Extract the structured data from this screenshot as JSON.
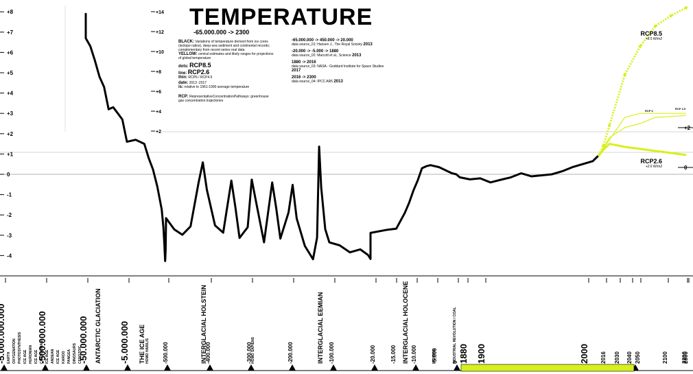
{
  "title": "TEMPERATURE",
  "subtitle": "-65.000.000 -> 2300",
  "legend": {
    "black_key": "BLACK:",
    "black_text": "Variations of temperature derived from ice cores (isotope ratios), deep-sea sediment and continental records; complementary from recent series real data",
    "yellow_key": "YELLOW:",
    "yellow_text": "central estimates and likely ranges for projections of global temperature",
    "dots_key": "dots:",
    "dots_val": "RCP8.5",
    "line_key": "line:",
    "line_val": "RCP2.6",
    "thin_key": "thin:",
    "thin_val": "RCP6 / RCP4.5",
    "date_key": "date:",
    "date_val": "2013 -2017",
    "is_key": "is:",
    "is_val": "relative to 1961-1990 average temperature",
    "rcp_key": "RCP:",
    "rcp_text": "RepresentativeConcentrationPathways: greenhouse gas concentration trajectories"
  },
  "sources": [
    {
      "period": "-65.000.000 -> 450.000 -> 20.000",
      "source": "data source_01: Hansen J., The Royal Society",
      "year": "2013"
    },
    {
      "period": "-20.000 -> -5.000 -> 1880",
      "source": "data source_02: Marcott et al., Science",
      "year": "2013"
    },
    {
      "period": "1880 -> 2016",
      "source": "data source_03: NASA - Goddard Institute for Space Studies",
      "year": "2017"
    },
    {
      "period": "2016 -> 2300",
      "source": "data source_04: IPCC AR5",
      "year": "2013"
    }
  ],
  "scenarios": [
    {
      "name": "RCP8.5",
      "forcing": "+8.5 W/m2"
    },
    {
      "name": "RCP2.6",
      "forcing": "+2.6 W/m2"
    },
    {
      "name": "RCP 6",
      "forcing": ""
    },
    {
      "name": "RCP 4.5",
      "forcing": ""
    }
  ],
  "chart_data": {
    "type": "line",
    "title": "TEMPERATURE",
    "subtitle": "-65.000.000 -> 2300",
    "ylabel": "",
    "left_axis": {
      "range": [
        -4.5,
        8
      ],
      "ticks": [
        "+8",
        "+7",
        "+6",
        "+5",
        "+4",
        "+3",
        "+2",
        "+1",
        "0",
        "-1",
        "-2",
        "-3",
        "-4"
      ]
    },
    "inset_axis": {
      "ticks": [
        "+14",
        "+12",
        "+10",
        "+8",
        "+6",
        "+4",
        "+2"
      ]
    },
    "right_axis": {
      "ticks": [
        "+2",
        "0"
      ]
    },
    "x_ticks_main": [
      "-5.000.000.000",
      "-500.000.000",
      "-50.000.000",
      "-5.000.000",
      "-500.000",
      "-400.000",
      "-300.000",
      "-200.000",
      "-100.000",
      "-20.000",
      "-15.000",
      "-10.000",
      "-5.000",
      "0",
      "1880",
      "1900",
      "2000",
      "2016",
      "2030",
      "2040",
      "2050",
      "2100",
      "2200",
      "2300"
    ],
    "periods": [
      "EARTH",
      "OXYGENATION",
      "PHOTOSYNTHESIS",
      "ICE AGE",
      "HURONIAN",
      "ICE AGE",
      "CRYOGENIAN",
      "ICE AGE",
      "ANDEAN",
      "ICE AGE",
      "KAROO",
      "PANGEA",
      "DINOSAURS",
      "CENOZOIC",
      "ANTARCTIC GLACIATION",
      "THE ICE AGE",
      "HOMO HABILIS",
      "INTERGLACIAL HOLSTEIN",
      "HOMO SAPIENS",
      "INTERGLACIAL EEMIAN",
      "INTERGLACIAL HOLOCENE",
      "WRITING",
      "INDUSTRIAL REVOLUTION / COAL"
    ],
    "series": [
      {
        "name": "BLACK",
        "color": "#000000",
        "points": [
          [
            -65000000,
            7.2
          ],
          [
            -60000000,
            7.5
          ],
          [
            -55000000,
            7.9
          ],
          [
            -50000000,
            6.7
          ],
          [
            -45000000,
            6.3
          ],
          [
            -40000000,
            5.6
          ],
          [
            -35000000,
            4.8
          ],
          [
            -30000000,
            4.3
          ],
          [
            -25000000,
            3.2
          ],
          [
            -20000000,
            3.3
          ],
          [
            -15000000,
            3.0
          ],
          [
            -10000000,
            2.7
          ],
          [
            -5000000,
            1.6
          ],
          [
            -4000000,
            1.7
          ],
          [
            -3000000,
            1.5
          ],
          [
            -2500000,
            0.8
          ],
          [
            -2000000,
            0.3
          ],
          [
            -1500000,
            -0.5
          ],
          [
            -1000000,
            -1.6
          ],
          [
            -800000,
            -2.5
          ],
          [
            -700000,
            -3.3
          ],
          [
            -600000,
            -4.2
          ],
          [
            -550000,
            -3.7
          ],
          [
            -500000,
            -2.2
          ],
          [
            -480000,
            -2.8
          ],
          [
            -460000,
            -3.1
          ],
          [
            -440000,
            -2.7
          ],
          [
            -420000,
            -0.5
          ],
          [
            -410000,
            0.5
          ],
          [
            -400000,
            -0.8
          ],
          [
            -380000,
            -2.5
          ],
          [
            -360000,
            -2.8
          ],
          [
            -340000,
            -0.2
          ],
          [
            -330000,
            -1.5
          ],
          [
            -320000,
            -3.0
          ],
          [
            -300000,
            -2.5
          ],
          [
            -290000,
            -0.2
          ],
          [
            -280000,
            -1.3
          ],
          [
            -260000,
            -3.4
          ],
          [
            -240000,
            -0.5
          ],
          [
            -230000,
            -1.8
          ],
          [
            -220000,
            -3.3
          ],
          [
            -200000,
            -2.0
          ],
          [
            -190000,
            -0.6
          ],
          [
            -180000,
            -2.2
          ],
          [
            -160000,
            -3.5
          ],
          [
            -140000,
            -4.1
          ],
          [
            -130000,
            -3.0
          ],
          [
            -125000,
            1.5
          ],
          [
            -120000,
            -0.5
          ],
          [
            -110000,
            -2.6
          ],
          [
            -100000,
            -3.3
          ],
          [
            -80000,
            -3.5
          ],
          [
            -60000,
            -3.9
          ],
          [
            -40000,
            -3.8
          ],
          [
            -25000,
            -4.1
          ],
          [
            -20000,
            -4.3
          ],
          [
            -20000,
            -3.0
          ],
          [
            -16000,
            -2.8
          ],
          [
            -14000,
            -2.7
          ],
          [
            -12000,
            -1.9
          ],
          [
            -11000,
            -1.4
          ],
          [
            -10000,
            -0.8
          ],
          [
            -9000,
            -0.3
          ],
          [
            -8000,
            0.3
          ],
          [
            -7000,
            0.4
          ],
          [
            -6000,
            0.45
          ],
          [
            -5000,
            0.4
          ],
          [
            -4000,
            0.35
          ],
          [
            -3000,
            0.25
          ],
          [
            -2000,
            0.15
          ],
          [
            -1000,
            0.05
          ],
          [
            0,
            0.0
          ],
          [
            1880,
            -0.15
          ],
          [
            1890,
            -0.25
          ],
          [
            1900,
            -0.2
          ],
          [
            1910,
            -0.4
          ],
          [
            1920,
            -0.27
          ],
          [
            1930,
            -0.15
          ],
          [
            1940,
            0.05
          ],
          [
            1950,
            -0.1
          ],
          [
            1960,
            -0.05
          ],
          [
            1970,
            0.0
          ],
          [
            1980,
            0.15
          ],
          [
            1990,
            0.35
          ],
          [
            2000,
            0.5
          ],
          [
            2010,
            0.65
          ],
          [
            2016,
            0.95
          ]
        ]
      },
      {
        "name": "RCP8.5",
        "color": "#d7f01c",
        "points": [
          [
            2016,
            0.95
          ],
          [
            2030,
            1.4
          ],
          [
            2050,
            2.4
          ],
          [
            2100,
            4.9
          ],
          [
            2150,
            6.3
          ],
          [
            2200,
            7.3
          ],
          [
            2250,
            7.8
          ],
          [
            2300,
            8.2
          ]
        ]
      },
      {
        "name": "RCP2.6",
        "color": "#d7f01c",
        "points": [
          [
            2016,
            0.95
          ],
          [
            2030,
            1.2
          ],
          [
            2050,
            1.5
          ],
          [
            2100,
            1.35
          ],
          [
            2150,
            1.25
          ],
          [
            2200,
            1.15
          ],
          [
            2250,
            1.05
          ],
          [
            2300,
            0.95
          ]
        ]
      },
      {
        "name": "RCP 6",
        "color": "#d7f01c",
        "points": [
          [
            2016,
            0.95
          ],
          [
            2050,
            1.7
          ],
          [
            2100,
            2.8
          ],
          [
            2150,
            3.0
          ],
          [
            2200,
            3.0
          ],
          [
            2300,
            3.0
          ]
        ]
      },
      {
        "name": "RCP 4.5",
        "color": "#d7f01c",
        "points": [
          [
            2016,
            0.95
          ],
          [
            2050,
            1.8
          ],
          [
            2100,
            2.3
          ],
          [
            2150,
            2.5
          ],
          [
            2200,
            2.8
          ],
          [
            2300,
            2.9
          ]
        ]
      }
    ]
  }
}
